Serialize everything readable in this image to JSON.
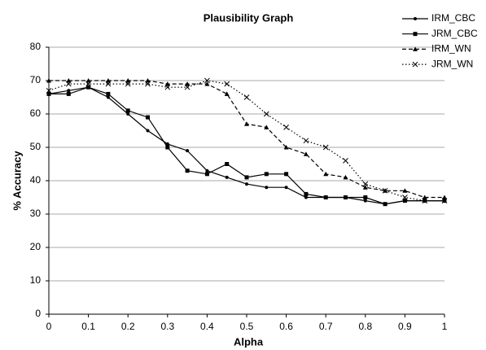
{
  "chart_data": {
    "type": "line",
    "title": "Plausibility Graph",
    "x_label": "Alpha",
    "y_label": "% Accuracy",
    "x": [
      0,
      0.05,
      0.1,
      0.15,
      0.2,
      0.25,
      0.3,
      0.35,
      0.4,
      0.45,
      0.5,
      0.55,
      0.6,
      0.65,
      0.7,
      0.75,
      0.8,
      0.85,
      0.9,
      0.95,
      1
    ],
    "series": [
      {
        "name": "IRM_CBC",
        "color": "#000000",
        "line_style": "solid",
        "marker": "dot",
        "values": [
          66,
          67,
          68,
          65,
          60,
          55,
          51,
          49,
          43,
          41,
          39,
          38,
          38,
          35,
          35,
          35,
          34,
          33,
          34,
          34,
          34
        ]
      },
      {
        "name": "JRM_CBC",
        "color": "#000000",
        "line_style": "solid",
        "marker": "square",
        "values": [
          66,
          66,
          68,
          66,
          61,
          59,
          50,
          43,
          42,
          45,
          41,
          42,
          42,
          36,
          35,
          35,
          35,
          33,
          34,
          34,
          34
        ]
      },
      {
        "name": "IRM_WN",
        "color": "#000000",
        "line_style": "dashed",
        "marker": "triangle",
        "values": [
          70,
          70,
          70,
          70,
          70,
          70,
          69,
          69,
          69,
          66,
          57,
          56,
          50,
          48,
          42,
          41,
          38,
          37,
          37,
          35,
          35
        ]
      },
      {
        "name": "JRM_WN",
        "color": "#000000",
        "line_style": "dotted",
        "marker": "cross",
        "values": [
          67,
          69,
          69,
          69,
          69,
          69,
          68,
          68,
          70,
          69,
          65,
          60,
          56,
          52,
          50,
          46,
          39,
          37,
          35,
          34,
          34
        ]
      }
    ],
    "xlim": [
      0,
      1
    ],
    "xticks": [
      0,
      0.1,
      0.2,
      0.3,
      0.4,
      0.5,
      0.6,
      0.7,
      0.8,
      0.9,
      1
    ],
    "ylim": [
      0,
      80
    ],
    "yticks": [
      0,
      10,
      20,
      30,
      40,
      50,
      60,
      70,
      80
    ],
    "grid": true,
    "legend": "right"
  }
}
